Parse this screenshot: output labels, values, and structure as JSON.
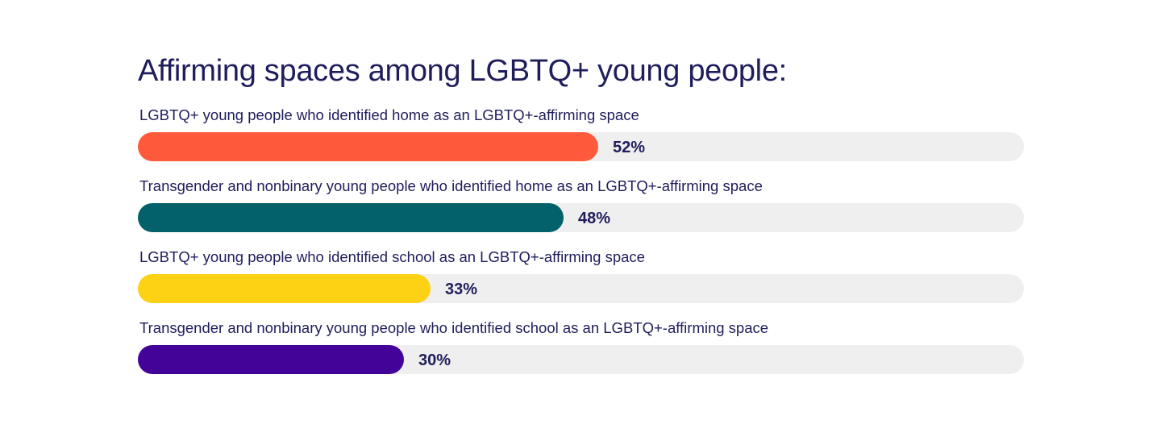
{
  "title": "Affirming spaces among LGBTQ+ young people:",
  "chart_data": {
    "type": "bar",
    "orientation": "horizontal",
    "title": "Affirming spaces among LGBTQ+ young people:",
    "categories": [
      "LGBTQ+ young people who identified home as an LGBTQ+-affirming space",
      "Transgender and nonbinary young people who identified home as an LGBTQ+-affirming space",
      "LGBTQ+ young people who identified school as an LGBTQ+-affirming space",
      "Transgender and nonbinary young people who identified school as an LGBTQ+-affirming space"
    ],
    "values": [
      52,
      48,
      33,
      30
    ],
    "value_labels": [
      "52%",
      "48%",
      "33%",
      "30%"
    ],
    "colors": [
      "#ff5a3c",
      "#02616a",
      "#fdd114",
      "#430399"
    ],
    "track_color": "#efefef",
    "xlim": [
      0,
      100
    ],
    "grid": false,
    "legend": "none"
  }
}
